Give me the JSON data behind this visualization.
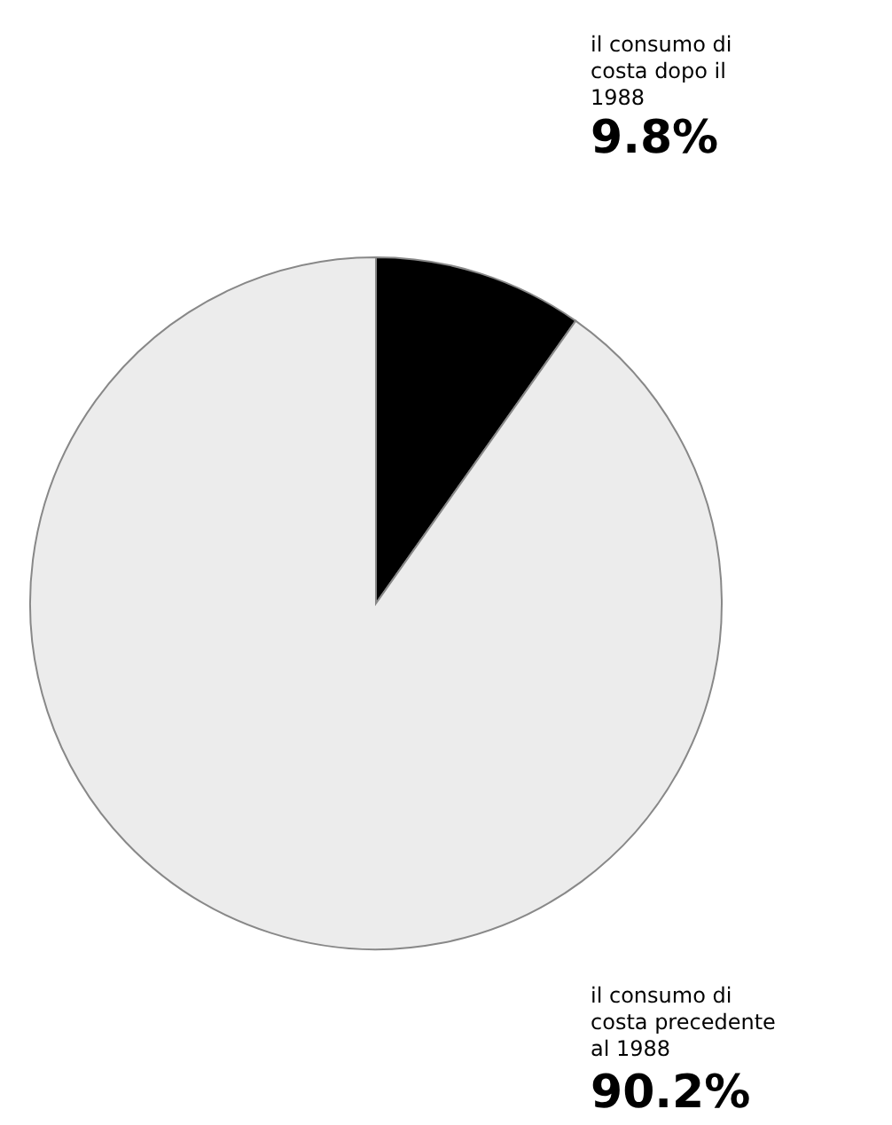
{
  "chart_data": {
    "type": "pie",
    "categories": [
      "il consumo di costa dopo il 1988",
      "il consumo di costa precedente al 1988"
    ],
    "values": [
      9.8,
      90.2
    ],
    "colors": [
      "#000000",
      "#ececec"
    ],
    "value_labels": [
      "9.8%",
      "90.2%"
    ]
  }
}
